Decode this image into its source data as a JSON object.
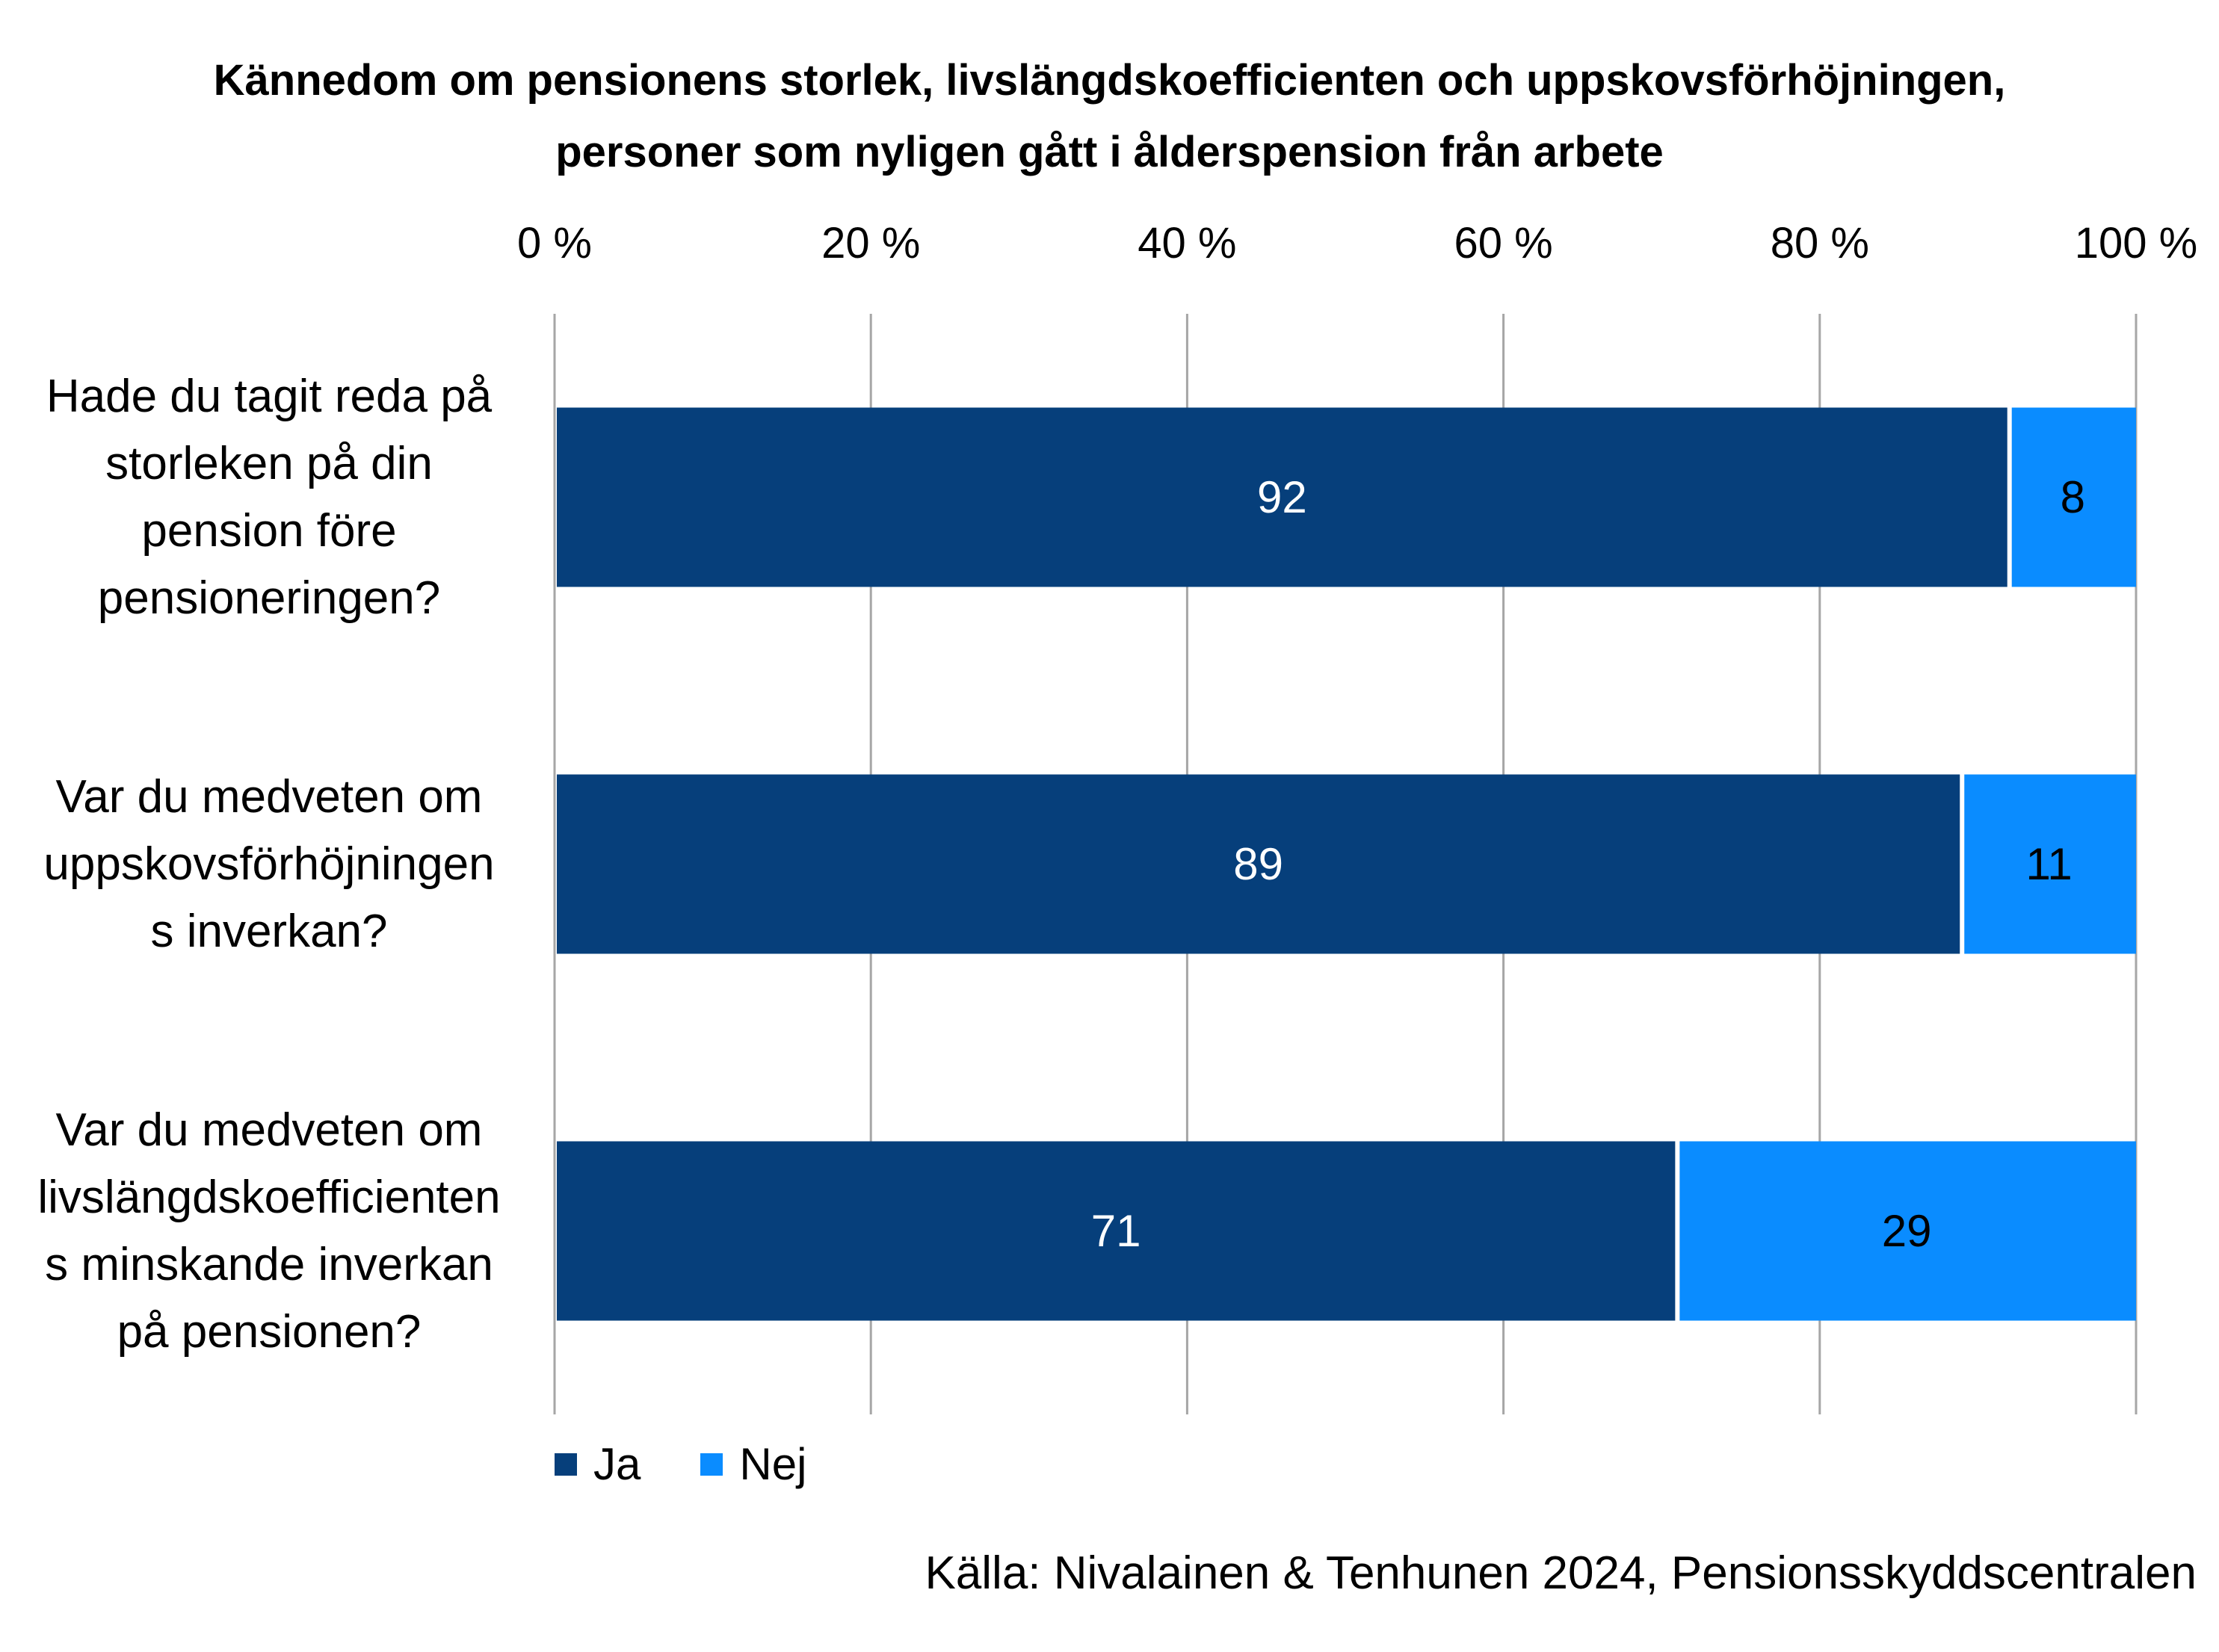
{
  "chart_data": {
    "type": "bar",
    "orientation": "horizontal",
    "stacked": true,
    "title_lines": [
      "Kännedom om pensionens storlek, livslängdskoefficienten och uppskovsförhöjningen,",
      "personer som nyligen gått i ålderspension från arbete"
    ],
    "xlim": [
      0,
      100
    ],
    "x_ticks": [
      0,
      20,
      40,
      60,
      80,
      100
    ],
    "x_tick_labels": [
      "0 %",
      "20 %",
      "40 %",
      "60 %",
      "80 %",
      "100 %"
    ],
    "x_axis_position": "top",
    "grid": true,
    "categories": [
      [
        "Hade du tagit reda på",
        "storleken på din",
        "pension före",
        "pensioneringen?"
      ],
      [
        "Var du medveten om",
        "uppskovsförhöjningen",
        "s inverkan?"
      ],
      [
        "Var du medveten om",
        "livslängdskoefficienten",
        "s minskande inverkan",
        "på pensionen?"
      ]
    ],
    "series": [
      {
        "name": "Ja",
        "color": "#063F7B",
        "label_color": "#FFFFFF",
        "values": [
          92,
          89,
          71
        ]
      },
      {
        "name": "Nej",
        "color": "#0A8CFF",
        "label_color": "#000000",
        "values": [
          8,
          11,
          29
        ]
      }
    ],
    "legend_position": "bottom-left",
    "source": "Källa: Nivalainen & Tenhunen 2024, Pensionsskyddscentralen"
  }
}
